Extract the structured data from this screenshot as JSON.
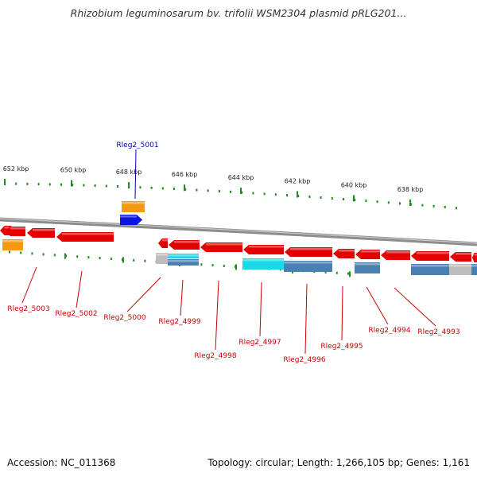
{
  "title": "Rhizobium leguminosarum bv. trifolii WSM2304 plasmid pRLG201...",
  "footer": {
    "accession": "Accession: NC_011368",
    "topology": "Topology: circular; Length: 1,266,105 bp; Genes: 1,161"
  },
  "colors": {
    "forward_gene": "#e50000",
    "cds_steelblue": "#4a7fb2",
    "cds_cyan": "#19d8e8",
    "cds_orange": "#f39a12",
    "cds_gray": "#bdbdbd",
    "tick": "#1f8c1f",
    "backbone": "#8c8c8c",
    "label_reverse": "#cc0000",
    "label_forward": "#0000aa"
  },
  "scale": {
    "ticks": [
      {
        "label": "652 kbp"
      },
      {
        "label": "650 kbp"
      },
      {
        "label": "648 kbp"
      },
      {
        "label": "646 kbp"
      },
      {
        "label": "644 kbp"
      },
      {
        "label": "642 kbp"
      },
      {
        "label": "640 kbp"
      },
      {
        "label": "638 kbp"
      }
    ]
  },
  "gene_labels": [
    {
      "id": "Rleg2_5001",
      "strand": "forward"
    },
    {
      "id": "Rleg2_5003",
      "strand": "reverse"
    },
    {
      "id": "Rleg2_5002",
      "strand": "reverse"
    },
    {
      "id": "Rleg2_5000",
      "strand": "reverse"
    },
    {
      "id": "Rleg2_4999",
      "strand": "reverse"
    },
    {
      "id": "Rleg2_4998",
      "strand": "reverse"
    },
    {
      "id": "Rleg2_4997",
      "strand": "reverse"
    },
    {
      "id": "Rleg2_4996",
      "strand": "reverse"
    },
    {
      "id": "Rleg2_4995",
      "strand": "reverse"
    },
    {
      "id": "Rleg2_4994",
      "strand": "reverse"
    },
    {
      "id": "Rleg2_4993",
      "strand": "reverse"
    }
  ]
}
